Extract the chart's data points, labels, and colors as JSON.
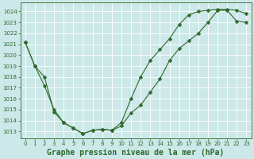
{
  "title": "Graphe pression niveau de la mer (hPa)",
  "bg_color": "#cce8e8",
  "line_color": "#2d6a2d",
  "grid_color": "#ffffff",
  "xlim": [
    -0.5,
    23.5
  ],
  "ylim": [
    1012.4,
    1024.8
  ],
  "xticks": [
    0,
    1,
    2,
    3,
    4,
    5,
    6,
    7,
    8,
    9,
    10,
    11,
    12,
    13,
    14,
    15,
    16,
    17,
    18,
    19,
    20,
    21,
    22,
    23
  ],
  "yticks": [
    1013,
    1014,
    1015,
    1016,
    1017,
    1018,
    1019,
    1020,
    1021,
    1022,
    1023,
    1024
  ],
  "series1_x": [
    0,
    1,
    2,
    3,
    4,
    5,
    6,
    7,
    8,
    9,
    10,
    11,
    12,
    13,
    14,
    15,
    16,
    17,
    18,
    19,
    20,
    21,
    22,
    23
  ],
  "series1_y": [
    1021.2,
    1019.0,
    1018.0,
    1014.8,
    1013.8,
    1013.3,
    1012.8,
    1013.1,
    1013.2,
    1013.1,
    1013.5,
    1014.7,
    1015.4,
    1016.6,
    1017.8,
    1019.5,
    1020.6,
    1021.3,
    1022.0,
    1023.0,
    1024.1,
    1024.1,
    1023.1,
    1023.0
  ],
  "series2_x": [
    0,
    1,
    2,
    3,
    4,
    5,
    6,
    7,
    8,
    9,
    10,
    11,
    12,
    13,
    14,
    15,
    16,
    17,
    18,
    19,
    20,
    21,
    22,
    23
  ],
  "series2_y": [
    1021.2,
    1019.0,
    1017.2,
    1015.0,
    1013.8,
    1013.3,
    1012.8,
    1013.1,
    1013.2,
    1013.1,
    1013.8,
    1016.0,
    1018.0,
    1019.5,
    1020.5,
    1021.5,
    1022.8,
    1023.7,
    1024.0,
    1024.1,
    1024.2,
    1024.2,
    1024.1,
    1023.8
  ],
  "marker": "D",
  "marker_size": 2.5,
  "line_width": 0.8,
  "title_fontsize": 7.0,
  "tick_fontsize": 5.0
}
